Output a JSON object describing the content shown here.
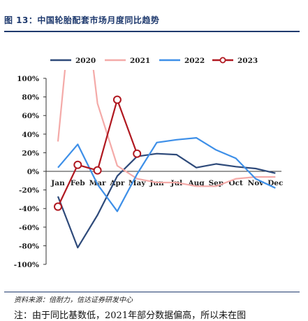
{
  "figure": {
    "title": "图 13：中国轮胎配套市场月度同比趋势",
    "source": "资料来源：倍耐力，信达证券研发中心",
    "note": "注：由于同比基数低，2021年部分数据偏高，所以未在图"
  },
  "chart_data": {
    "type": "line",
    "categories": [
      "Jan",
      "Feb",
      "Mar",
      "Apr",
      "May",
      "Jun",
      "Jul",
      "Aug",
      "Sep",
      "Oct",
      "Nov",
      "Dec"
    ],
    "ylim": [
      -100,
      100
    ],
    "yticks": [
      "100%",
      "80%",
      "60%",
      "40%",
      "20%",
      "0%",
      "-20%",
      "-40%",
      "-60%",
      "-80%",
      "-100%"
    ],
    "grid": false,
    "legend_position": "top",
    "series": [
      {
        "name": "2020",
        "color": "#2e4a7a",
        "marker": false,
        "values": [
          -27,
          -82,
          -47,
          -5,
          16,
          19,
          18,
          4,
          8,
          5,
          3,
          -2
        ]
      },
      {
        "name": "2021",
        "color": "#f4aaa8",
        "marker": false,
        "values": [
          32,
          250,
          73,
          6,
          -8,
          -12,
          -12,
          -16,
          -16,
          -8,
          -6,
          -6
        ]
      },
      {
        "name": "2022",
        "color": "#3d8fe8",
        "marker": false,
        "values": [
          4,
          29,
          -14,
          -43,
          -3,
          31,
          34,
          36,
          23,
          14,
          -8,
          -18
        ]
      },
      {
        "name": "2023",
        "color": "#b01820",
        "marker": true,
        "values": [
          -38,
          7,
          1,
          77,
          19,
          null,
          null,
          null,
          null,
          null,
          null,
          null
        ]
      }
    ]
  }
}
